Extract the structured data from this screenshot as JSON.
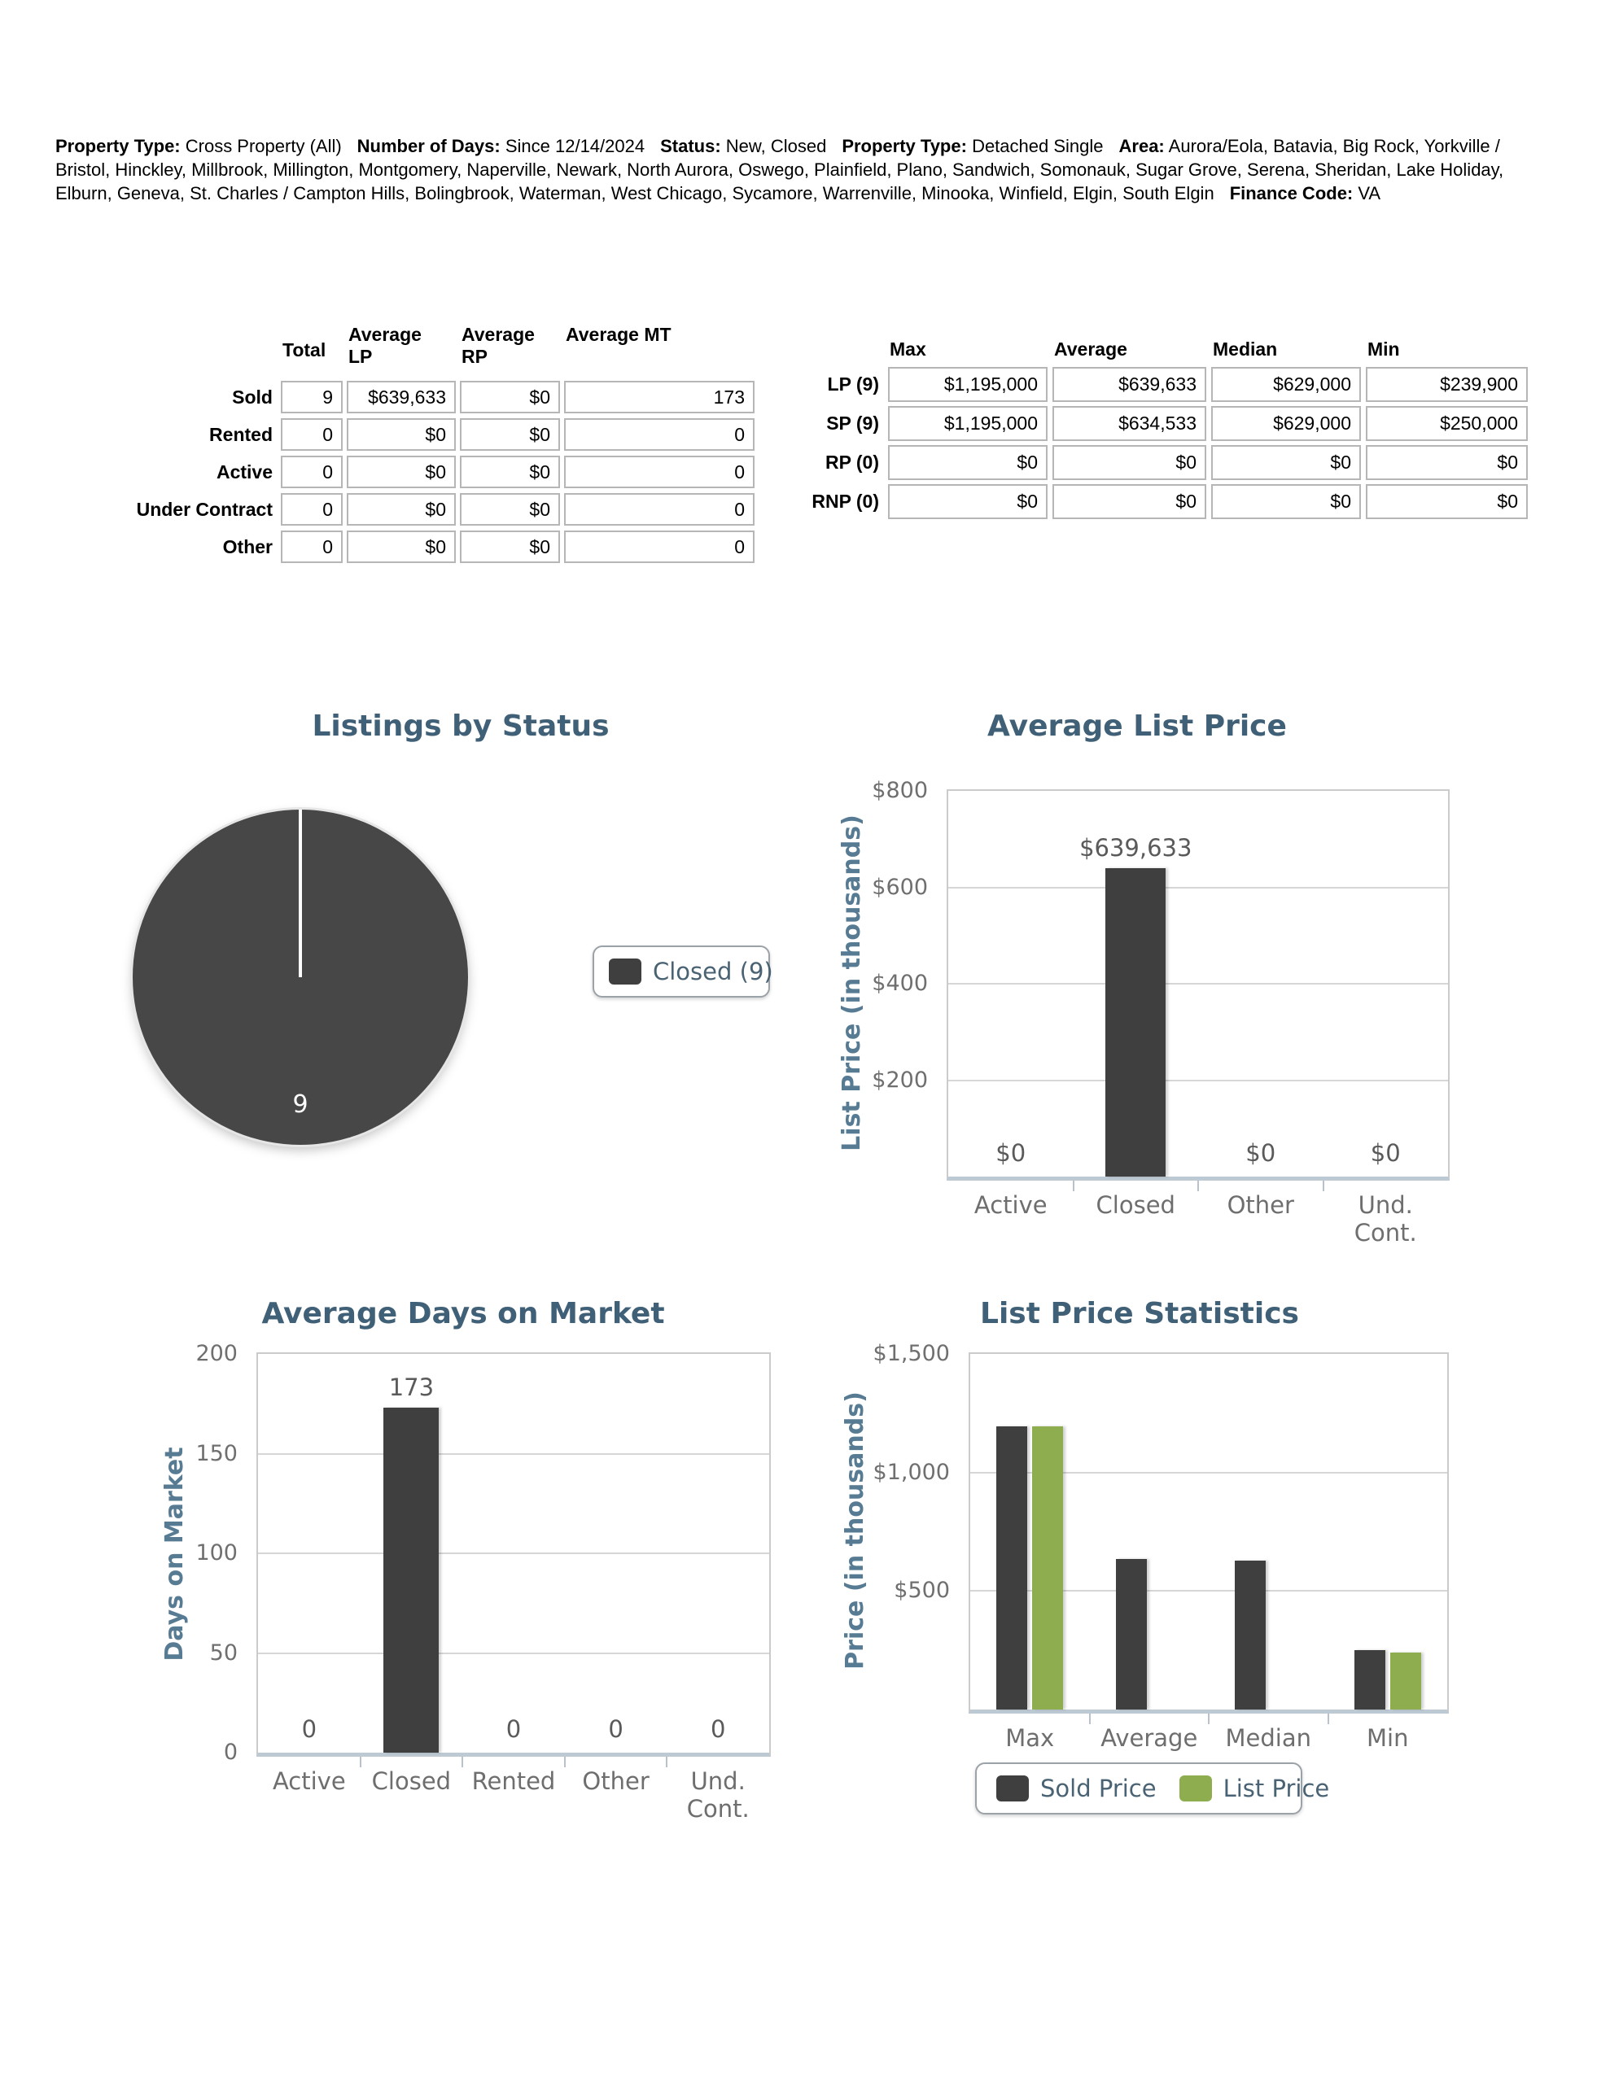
{
  "page": {
    "background": "#ffffff"
  },
  "colors": {
    "chart_title": "#3f6076",
    "axis_title": "#567b93",
    "tick_label": "#6f6f6f",
    "value_label": "#5a5a5a",
    "legend_text": "#4a6374",
    "bar_dark": "#3f3f3f",
    "bar_green": "#8ead4e",
    "pie_fill": "#474747",
    "gridline": "#d6d6d6",
    "plot_border": "#cbcbcb",
    "axis_band": "#bdc9d3",
    "table_box_border": "#b6b6b6"
  },
  "header": {
    "segments": [
      {
        "label": "Property Type:",
        "value": "Cross Property (All)"
      },
      {
        "label": "Number of Days:",
        "value": "Since 12/14/2024"
      },
      {
        "label": "Status:",
        "value": "New, Closed"
      },
      {
        "label": "Property Type:",
        "value": "Detached Single"
      },
      {
        "label": "Area:",
        "value": "Aurora/Eola, Batavia, Big Rock, Yorkville / Bristol, Hinckley, Millbrook, Millington, Montgomery, Naperville, Newark, North Aurora, Oswego, Plainfield, Plano, Sandwich, Somonauk, Sugar Grove, Serena, Sheridan, Lake Holiday, Elburn, Geneva, St. Charles / Campton Hills, Bolingbrook, Waterman, West Chicago, Sycamore, Warrenville, Minooka, Winfield, Elgin, South Elgin"
      },
      {
        "label": "Finance Code:",
        "value": "VA"
      }
    ]
  },
  "summary_table": {
    "headers": [
      "Total",
      "Average\nLP",
      "Average\nRP",
      "Average MT"
    ],
    "rows": [
      {
        "label": "Sold",
        "values": [
          "9",
          "$639,633",
          "$0",
          "173"
        ]
      },
      {
        "label": "Rented",
        "values": [
          "0",
          "$0",
          "$0",
          "0"
        ]
      },
      {
        "label": "Active",
        "values": [
          "0",
          "$0",
          "$0",
          "0"
        ]
      },
      {
        "label": "Under Contract",
        "values": [
          "0",
          "$0",
          "$0",
          "0"
        ]
      },
      {
        "label": "Other",
        "values": [
          "0",
          "$0",
          "$0",
          "0"
        ]
      }
    ]
  },
  "price_table": {
    "headers": [
      "Max",
      "Average",
      "Median",
      "Min"
    ],
    "rows": [
      {
        "label": "LP (9)",
        "values": [
          "$1,195,000",
          "$639,633",
          "$629,000",
          "$239,900"
        ]
      },
      {
        "label": "SP (9)",
        "values": [
          "$1,195,000",
          "$634,533",
          "$629,000",
          "$250,000"
        ]
      },
      {
        "label": "RP (0)",
        "values": [
          "$0",
          "$0",
          "$0",
          "$0"
        ]
      },
      {
        "label": "RNP (0)",
        "values": [
          "$0",
          "$0",
          "$0",
          "$0"
        ]
      }
    ]
  },
  "chart_data": [
    {
      "type": "pie",
      "title": "Listings by Status",
      "labels": [
        "Closed"
      ],
      "values": [
        9
      ],
      "slice_label": "9",
      "colors": [
        "#474747"
      ],
      "legend": [
        "Closed (9)"
      ],
      "legend_position": "right"
    },
    {
      "type": "bar",
      "title": "Average List Price",
      "ylabel": "List Price (in thousands)",
      "categories": [
        "Active",
        "Closed",
        "Other",
        "Und.\nCont."
      ],
      "values": [
        0,
        639.633,
        0,
        0
      ],
      "bar_labels": [
        "$0",
        "$639,633",
        "$0",
        "$0"
      ],
      "unit": "thousands of dollars",
      "ylim": [
        0,
        800
      ],
      "yticks": [
        {
          "label": "$800",
          "value": 800
        },
        {
          "label": "$600",
          "value": 600
        },
        {
          "label": "$400",
          "value": 400
        },
        {
          "label": "$200",
          "value": 200
        }
      ],
      "bar_color": "#3f3f3f",
      "grid": true
    },
    {
      "type": "bar",
      "title": "Average Days on Market",
      "ylabel": "Days on Market",
      "categories": [
        "Active",
        "Closed",
        "Rented",
        "Other",
        "Und.\nCont."
      ],
      "values": [
        0,
        173,
        0,
        0,
        0
      ],
      "bar_labels": [
        "0",
        "173",
        "0",
        "0",
        "0"
      ],
      "unit": "days",
      "ylim": [
        0,
        200
      ],
      "yticks": [
        {
          "label": "200",
          "value": 200
        },
        {
          "label": "150",
          "value": 150
        },
        {
          "label": "100",
          "value": 100
        },
        {
          "label": "50",
          "value": 50
        },
        {
          "label": "0",
          "value": 0
        }
      ],
      "bar_color": "#3f3f3f",
      "grid": true
    },
    {
      "type": "bar",
      "title": "List Price Statistics",
      "ylabel": "Price (in thousands)",
      "categories": [
        "Max",
        "Average",
        "Median",
        "Min"
      ],
      "series": [
        {
          "name": "Sold Price",
          "color": "#3f3f3f",
          "values": [
            1195,
            634.533,
            629,
            250
          ]
        },
        {
          "name": "List Price",
          "color": "#8ead4e",
          "values": [
            1195,
            null,
            null,
            239.9
          ]
        }
      ],
      "unit": "thousands of dollars",
      "ylim": [
        0,
        1500
      ],
      "yticks": [
        {
          "label": "$1,500",
          "value": 1500
        },
        {
          "label": "$1,000",
          "value": 1000
        },
        {
          "label": "$500",
          "value": 500
        }
      ],
      "legend": [
        "Sold Price",
        "List Price"
      ],
      "legend_position": "bottom",
      "grid": true
    }
  ]
}
